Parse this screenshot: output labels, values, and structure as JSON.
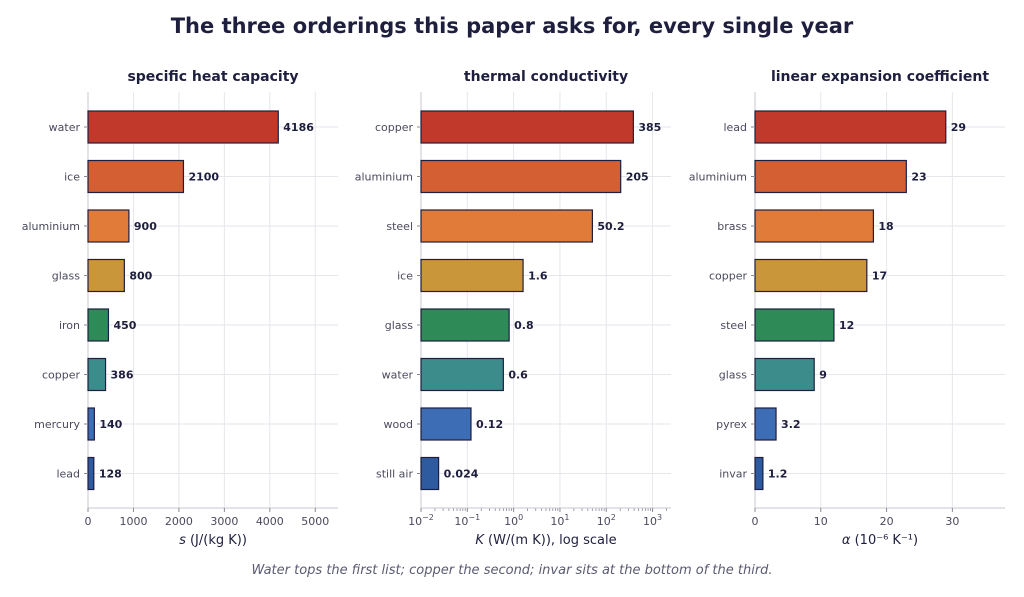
{
  "title": "The three orderings this paper asks for, every single year",
  "caption": "Water tops the first list; copper the second; invar sits at the bottom of the third.",
  "palette": [
    "#c0392b",
    "#d35f33",
    "#e07b39",
    "#c9963a",
    "#2e8b57",
    "#3d8c8c",
    "#3d6db5",
    "#2e5aa0"
  ],
  "chart_data": [
    {
      "type": "bar",
      "orientation": "horizontal",
      "title": "specific heat capacity",
      "xlabel_symbol": "s",
      "xlabel_unit": "(J/(kg K))",
      "xscale": "linear",
      "xlim": [
        0,
        5500
      ],
      "xticks": [
        0,
        1000,
        2000,
        3000,
        4000,
        5000
      ],
      "categories": [
        "water",
        "ice",
        "aluminium",
        "glass",
        "iron",
        "copper",
        "mercury",
        "lead"
      ],
      "values": [
        4186,
        2100,
        900,
        800,
        450,
        386,
        140,
        128
      ],
      "value_labels": [
        "4186",
        "2100",
        "900",
        "800",
        "450",
        "386",
        "140",
        "128"
      ],
      "grid": true
    },
    {
      "type": "bar",
      "orientation": "horizontal",
      "title": "thermal conductivity",
      "xlabel_symbol": "K",
      "xlabel_unit": "(W/(m K)),  log scale",
      "xscale": "log",
      "xlim": [
        0.01,
        2500
      ],
      "xticks": [
        0.01,
        0.1,
        1,
        10,
        100,
        1000
      ],
      "categories": [
        "copper",
        "aluminium",
        "steel",
        "ice",
        "glass",
        "water",
        "wood",
        "still air"
      ],
      "values": [
        385,
        205,
        50.2,
        1.6,
        0.8,
        0.6,
        0.12,
        0.024
      ],
      "value_labels": [
        "385",
        "205",
        "50.2",
        "1.6",
        "0.8",
        "0.6",
        "0.12",
        "0.024"
      ],
      "grid": true
    },
    {
      "type": "bar",
      "orientation": "horizontal",
      "title": "linear expansion coefficient",
      "xlabel_symbol": "α",
      "xlabel_unit": "(10⁻⁶ K⁻¹)",
      "xscale": "linear",
      "xlim": [
        0,
        38
      ],
      "xticks": [
        0,
        10,
        20,
        30
      ],
      "categories": [
        "lead",
        "aluminium",
        "brass",
        "copper",
        "steel",
        "glass",
        "pyrex",
        "invar"
      ],
      "values": [
        29,
        23,
        18,
        17,
        12,
        9,
        3.2,
        1.2
      ],
      "value_labels": [
        "29",
        "23",
        "18",
        "17",
        "12",
        "9",
        "3.2",
        "1.2"
      ],
      "grid": true
    }
  ]
}
